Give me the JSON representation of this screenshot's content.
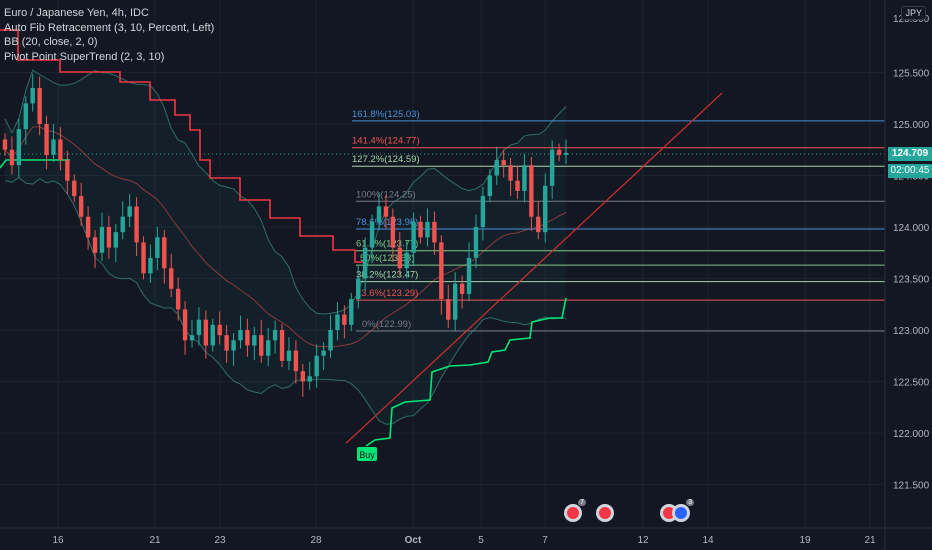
{
  "legend": {
    "title": "Euro / Japanese Yen, 4h, IDC",
    "ind1": "Auto Fib Retracement (3, 10, Percent, Left)",
    "ind2": "BB (20, close, 2, 0)",
    "ind3": "Pivot Point SuperTrend (2, 3, 10)"
  },
  "scale_label": "JPY",
  "price_badge": "124.709",
  "timer_badge": "02:00:45",
  "buy_label": "Buy",
  "colors": {
    "bg": "#131722",
    "up": "#26a69a",
    "down": "#ef5350",
    "bb": "#2e6f66",
    "supertrend_up": "#00e676",
    "supertrend_down": "#f23645",
    "trendline": "#d32f2f"
  },
  "chart_data": {
    "type": "candlestick",
    "title": "Euro / Japanese Yen, 4h, IDC",
    "y_ticks": [
      "125.500",
      "125.000",
      "124.500",
      "124.000",
      "123.500",
      "123.000",
      "122.500",
      "122.000",
      "121.500"
    ],
    "y_tick_values": [
      125.5,
      125.0,
      124.5,
      124.0,
      123.5,
      123.0,
      122.5,
      122.0,
      121.5
    ],
    "top_tick_partial": "125.000",
    "x_ticks": [
      "16",
      "21",
      "23",
      "28",
      "Oct",
      "5",
      "7",
      "12",
      "14",
      "19",
      "21"
    ],
    "last_price": 124.709,
    "fib_levels": [
      {
        "label": "161.8%(125.03)",
        "value": 125.03,
        "color": "#4a90d9"
      },
      {
        "label": "141.4%(124.77)",
        "value": 124.77,
        "color": "#ef5350"
      },
      {
        "label": "127.2%(124.59)",
        "value": 124.59,
        "color": "#a5d6a7"
      },
      {
        "label": "100%(124.25)",
        "value": 124.25,
        "color": "#787b86"
      },
      {
        "label": "78.6%(123.98)",
        "value": 123.98,
        "color": "#4a90d9"
      },
      {
        "label": "61.8%(123.77)",
        "value": 123.77,
        "color": "#81c784"
      },
      {
        "label": "50%(123.63)",
        "value": 123.63,
        "color": "#81c784"
      },
      {
        "label": "38.2%(123.47)",
        "value": 123.47,
        "color": "#a5d6a7"
      },
      {
        "label": "23.6%(123.29)",
        "value": 123.29,
        "color": "#ef5350"
      },
      {
        "label": "0%(122.99)",
        "value": 122.99,
        "color": "#787b86"
      }
    ],
    "candles_close": [
      124.75,
      124.6,
      124.95,
      125.2,
      125.35,
      125.0,
      124.7,
      124.85,
      124.65,
      124.45,
      124.3,
      124.1,
      123.9,
      123.75,
      124.0,
      123.8,
      123.95,
      124.1,
      124.2,
      123.85,
      123.55,
      123.7,
      123.9,
      123.6,
      123.4,
      123.2,
      122.9,
      122.95,
      123.1,
      122.85,
      123.05,
      122.95,
      122.8,
      122.9,
      123.0,
      122.85,
      122.95,
      122.75,
      122.9,
      123.0,
      122.7,
      122.8,
      122.6,
      122.5,
      122.55,
      122.75,
      122.8,
      123.0,
      123.15,
      123.05,
      123.3,
      123.5,
      123.8,
      124.05,
      124.2,
      124.1,
      123.8,
      123.6,
      123.75,
      124.05,
      123.9,
      124.05,
      123.85,
      123.3,
      123.1,
      123.45,
      123.35,
      123.7,
      124.0,
      124.3,
      124.5,
      124.65,
      124.6,
      124.45,
      124.35,
      124.6,
      124.1,
      123.95,
      124.4,
      124.75,
      124.7,
      124.72
    ],
    "x_start_index_label": "16",
    "annotations": [
      "Buy"
    ]
  }
}
